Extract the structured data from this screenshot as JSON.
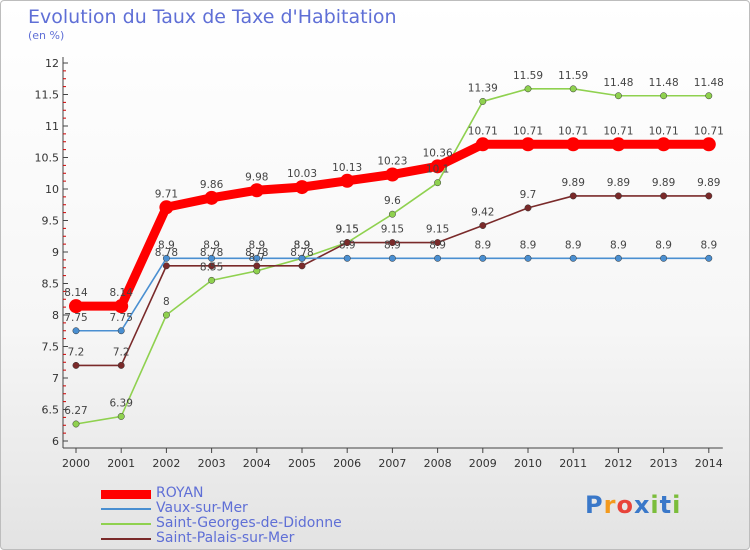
{
  "title": "Evolution du Taux de Taxe d'Habitation",
  "subtitle": "(en %)",
  "logo": {
    "text": "Proxiti",
    "letters": [
      "P",
      "r",
      "o",
      "x",
      "i",
      "t",
      "i"
    ],
    "colors": [
      "#3a78c9",
      "#f39a1e",
      "#e8433a",
      "#3a78c9",
      "#7bbd3b",
      "#3a78c9",
      "#7bbd3b"
    ]
  },
  "chart_data": {
    "type": "line",
    "title": "Evolution du Taux de Taxe d'Habitation",
    "ylabel": "(en %)",
    "xlabel": "",
    "x": [
      "2000",
      "2001",
      "2002",
      "2003",
      "2004",
      "2005",
      "2006",
      "2007",
      "2008",
      "2009",
      "2010",
      "2011",
      "2012",
      "2013",
      "2014"
    ],
    "yticks": [
      "6",
      "6.5",
      "7",
      "7.5",
      "8",
      "8.5",
      "9",
      "9.5",
      "10",
      "10.5",
      "11",
      "11.5",
      "12"
    ],
    "ylim": [
      6,
      12
    ],
    "grid": false,
    "legend": "bottom-left",
    "series": [
      {
        "name": "ROYAN",
        "color": "#ff0000",
        "values": [
          8.14,
          8.14,
          9.71,
          9.86,
          9.98,
          10.03,
          10.13,
          10.23,
          10.36,
          10.71,
          10.71,
          10.71,
          10.71,
          10.71,
          10.71
        ],
        "labels": [
          "8.14",
          "8.14",
          "9.71",
          "9.86",
          "9.98",
          "10.03",
          "10.13",
          "10.23",
          "10.36",
          "10.71",
          "10.71",
          "10.71",
          "10.71",
          "10.71",
          "10.71"
        ]
      },
      {
        "name": "Vaux-sur-Mer",
        "color": "#4a8fd1",
        "values": [
          7.75,
          7.75,
          8.9,
          8.9,
          8.9,
          8.9,
          8.9,
          8.9,
          8.9,
          8.9,
          8.9,
          8.9,
          8.9,
          8.9,
          8.9
        ],
        "labels": [
          "7.75",
          "7.75",
          "8.9",
          "8.9",
          "8.9",
          "8.9",
          "8.9",
          "8.9",
          "8.9",
          "8.9",
          "8.9",
          "8.9",
          "8.9",
          "8.9",
          "8.9"
        ]
      },
      {
        "name": "Saint-Georges-de-Didonne",
        "color": "#8fd14f",
        "values": [
          6.27,
          6.39,
          8,
          8.55,
          8.7,
          8.9,
          9.15,
          9.6,
          10.1,
          11.39,
          11.59,
          11.59,
          11.48,
          11.48,
          11.48
        ],
        "labels": [
          "6.27",
          "6.39",
          "8",
          "8.55",
          "8.7",
          "8.9",
          "9.15",
          "9.6",
          "10.1",
          "11.39",
          "11.59",
          "11.59",
          "11.48",
          "11.48",
          "11.48"
        ]
      },
      {
        "name": "Saint-Palais-sur-Mer",
        "color": "#7a2a2a",
        "values": [
          7.2,
          7.2,
          8.78,
          8.78,
          8.78,
          8.78,
          9.15,
          9.15,
          9.15,
          9.42,
          9.7,
          9.89,
          9.89,
          9.89,
          9.89
        ],
        "labels": [
          "7.2",
          "7.2",
          "8.78",
          "8.78",
          "8.78",
          "8.78",
          "9.15",
          "9.15",
          "9.15",
          "9.42",
          "9.7",
          "9.89",
          "9.89",
          "9.89",
          "9.89"
        ]
      }
    ]
  }
}
